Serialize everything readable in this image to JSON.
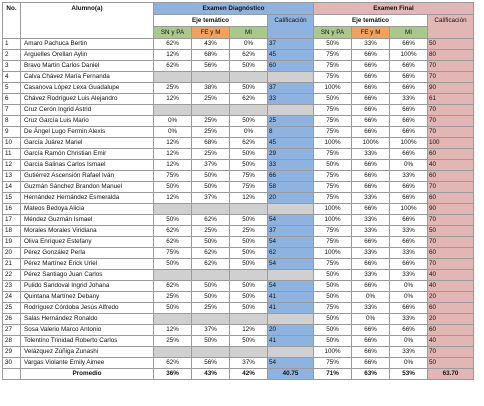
{
  "headers": {
    "no": "No.",
    "alumno": "Alumno(a)",
    "diagnostico": "Examen Diagnóstico",
    "final": "Examen Final",
    "eje": "Eje temático",
    "calificacion": "Calificación",
    "sub": [
      "SN y PA",
      "FE y M",
      "MI"
    ]
  },
  "rows": [
    [
      "1",
      "Amaro Pachuca Bertin",
      "62%",
      "43%",
      "0%",
      "37",
      "50%",
      "33%",
      "66%",
      "50"
    ],
    [
      "2",
      "Arguelles Orellan Aylin",
      "12%",
      "68%",
      "62%",
      "45",
      "75%",
      "66%",
      "100%",
      "80"
    ],
    [
      "3",
      "Bravo Martin Carlos Daniel",
      "62%",
      "56%",
      "50%",
      "60",
      "75%",
      "66%",
      "66%",
      "70"
    ],
    [
      "4",
      "Calva Chávez María Fernanda",
      "",
      "",
      "",
      "",
      "75%",
      "66%",
      "66%",
      "70"
    ],
    [
      "5",
      "Casanova López Lexa Guadalupe",
      "25%",
      "38%",
      "50%",
      "37",
      "100%",
      "66%",
      "66%",
      "90"
    ],
    [
      "6",
      "Chávez Rodríguez Luis Alejandro",
      "12%",
      "25%",
      "62%",
      "33",
      "50%",
      "66%",
      "33%",
      "61"
    ],
    [
      "7",
      "Cruz Cerón Ingrid Astrid",
      "",
      "",
      "",
      "",
      "75%",
      "66%",
      "66%",
      "70"
    ],
    [
      "8",
      "Cruz García Luis Mario",
      "0%",
      "25%",
      "50%",
      "25",
      "75%",
      "66%",
      "66%",
      "70"
    ],
    [
      "9",
      "De Ángel Lugo Fermin Alexis",
      "0%",
      "25%",
      "0%",
      "8",
      "75%",
      "66%",
      "66%",
      "70"
    ],
    [
      "10",
      "García Juárez Mariel",
      "12%",
      "68%",
      "62%",
      "45",
      "100%",
      "100%",
      "100%",
      "100"
    ],
    [
      "11",
      "García Ramón Christian Emir",
      "12%",
      "25%",
      "50%",
      "29",
      "75%",
      "33%",
      "66%",
      "60"
    ],
    [
      "12",
      "García Salinas Carlos Ismael",
      "12%",
      "37%",
      "50%",
      "33",
      "50%",
      "66%",
      "0%",
      "40"
    ],
    [
      "13",
      "Gutiérrez Ascensión Rafael Iván",
      "75%",
      "50%",
      "75%",
      "66",
      "75%",
      "66%",
      "33%",
      "60"
    ],
    [
      "14",
      "Guzmán Sánchez Brandon Manuel",
      "50%",
      "50%",
      "75%",
      "58",
      "75%",
      "66%",
      "66%",
      "70"
    ],
    [
      "15",
      "Hernández Hernández Esmeralda",
      "12%",
      "37%",
      "12%",
      "20",
      "75%",
      "33%",
      "66%",
      "60"
    ],
    [
      "16",
      "Mateos Bedoya Alicia",
      "",
      "",
      "",
      "",
      "100%",
      "66%",
      "100%",
      "90"
    ],
    [
      "17",
      "Méndez Guzmán Ismael",
      "50%",
      "62%",
      "50%",
      "54",
      "100%",
      "33%",
      "66%",
      "70"
    ],
    [
      "18",
      "Morales Morales Viridiana",
      "62%",
      "25%",
      "25%",
      "37",
      "75%",
      "33%",
      "33%",
      "50"
    ],
    [
      "19",
      "Oliva Enríquez Estefany",
      "62%",
      "50%",
      "50%",
      "54",
      "75%",
      "66%",
      "66%",
      "70"
    ],
    [
      "20",
      "Pérez González Perla",
      "75%",
      "62%",
      "50%",
      "62",
      "100%",
      "33%",
      "33%",
      "60"
    ],
    [
      "21",
      "Pérez Martínez Erick Uriel",
      "50%",
      "62%",
      "50%",
      "54",
      "75%",
      "66%",
      "66%",
      "70"
    ],
    [
      "22",
      "Pérez Santiago Juan Carlos",
      "",
      "",
      "",
      "",
      "50%",
      "33%",
      "33%",
      "40"
    ],
    [
      "23",
      "Pulido Sandoval Ingrid Johana",
      "62%",
      "50%",
      "50%",
      "54",
      "50%",
      "66%",
      "0%",
      "40"
    ],
    [
      "24",
      "Quintana Martínez Debany",
      "25%",
      "50%",
      "50%",
      "41",
      "50%",
      "0%",
      "0%",
      "20"
    ],
    [
      "25",
      "Rodríguez Córdoba Jesús Alfredo",
      "50%",
      "25%",
      "50%",
      "41",
      "75%",
      "33%",
      "66%",
      "60"
    ],
    [
      "26",
      "Salas Hernández Ronaldo",
      "",
      "",
      "",
      "",
      "50%",
      "0%",
      "33%",
      "20"
    ],
    [
      "27",
      "Sosa Valerio Marco Antonio",
      "12%",
      "37%",
      "12%",
      "20",
      "50%",
      "66%",
      "66%",
      "60"
    ],
    [
      "28",
      "Tolentino Trinidad Roberto Carlos",
      "25%",
      "50%",
      "50%",
      "41",
      "50%",
      "66%",
      "0%",
      "40"
    ],
    [
      "29",
      "Velázquez Zúñiga Zunashi",
      "",
      "",
      "",
      "",
      "100%",
      "66%",
      "33%",
      "70"
    ],
    [
      "30",
      "Vargas Violante Emily Aimee",
      "62%",
      "56%",
      "37%",
      "54",
      "75%",
      "66%",
      "0%",
      "50"
    ]
  ],
  "footer": {
    "label": "Promedio",
    "values": [
      "36%",
      "43%",
      "42%",
      "40.75",
      "71%",
      "63%",
      "53%",
      "63.70"
    ]
  }
}
